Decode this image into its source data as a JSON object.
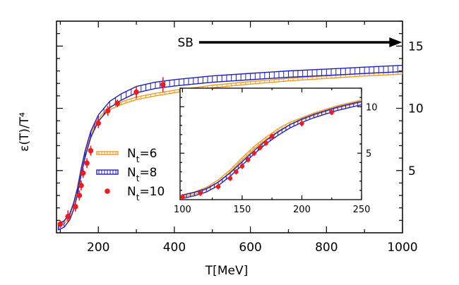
{
  "colors": {
    "nt6": "#f29a1f",
    "nt8": "#1f1fc8",
    "nt10": "#ee1c1c",
    "axis": "#000000"
  },
  "chart_data": [
    {
      "type": "line",
      "title": "",
      "xlabel": "T[MeV]",
      "ylabel": "ε(T)/T⁴",
      "xlim": [
        90,
        1000
      ],
      "ylim": [
        0,
        17
      ],
      "x_ticks": [
        200,
        400,
        600,
        800,
        1000
      ],
      "y_ticks_right": [
        5,
        10,
        15
      ],
      "y_scale_note": "y-axis tick labels printed on the right side",
      "grid": false,
      "legend_position": "center-left",
      "legend": [
        "N_t=6",
        "N_t=8",
        "N_t=10"
      ],
      "annotation": {
        "text": "SB",
        "arrow_from_x": 465,
        "arrow_to_x": 995,
        "y": 15.3
      },
      "series": [
        {
          "name": "N_t=6",
          "style": "band",
          "x": [
            95,
            110,
            125,
            135,
            145,
            155,
            165,
            180,
            200,
            230,
            260,
            300,
            350,
            400,
            500,
            600,
            700,
            800,
            900,
            1000
          ],
          "y": [
            0.6,
            0.8,
            1.4,
            2.3,
            3.5,
            5.1,
            6.4,
            7.9,
            9.1,
            10.0,
            10.4,
            10.8,
            11.1,
            11.35,
            11.75,
            12.05,
            12.3,
            12.5,
            12.7,
            12.85
          ]
        },
        {
          "name": "N_t=8",
          "style": "band",
          "x": [
            95,
            110,
            125,
            135,
            145,
            155,
            165,
            180,
            200,
            230,
            260,
            300,
            350,
            400,
            500,
            600,
            700,
            800,
            900,
            1000
          ],
          "y": [
            0.5,
            0.7,
            1.3,
            2.1,
            3.3,
            4.9,
            6.3,
            7.9,
            9.2,
            10.3,
            10.9,
            11.5,
            11.85,
            12.05,
            12.35,
            12.55,
            12.75,
            12.9,
            13.05,
            13.2
          ]
        },
        {
          "name": "N_t=10",
          "style": "points",
          "x": [
            100,
            120,
            140,
            150,
            155,
            160,
            170,
            180,
            200,
            225,
            250,
            300,
            370
          ],
          "y": [
            0.7,
            1.3,
            2.1,
            3.0,
            3.8,
            4.8,
            5.6,
            6.6,
            8.8,
            9.8,
            10.4,
            11.3,
            11.9
          ],
          "err": [
            0.3,
            0.5,
            0.4,
            0.4,
            0.4,
            0.4,
            0.4,
            0.4,
            0.4,
            0.4,
            0.3,
            0.5,
            0.6
          ]
        }
      ]
    },
    {
      "type": "line",
      "title": "",
      "xlabel": "",
      "ylabel": "",
      "xlim": [
        98,
        250
      ],
      "ylim": [
        0,
        12
      ],
      "x_ticks": [
        100,
        150,
        200,
        250
      ],
      "y_ticks_right": [
        5,
        10
      ],
      "grid": false,
      "series": [
        {
          "name": "N_t=6",
          "style": "band",
          "x": [
            100,
            110,
            120,
            130,
            140,
            150,
            160,
            170,
            180,
            190,
            200,
            210,
            220,
            230,
            240,
            250
          ],
          "y": [
            0.4,
            0.7,
            1.2,
            2.0,
            3.1,
            4.4,
            5.6,
            6.6,
            7.5,
            8.2,
            8.7,
            9.2,
            9.6,
            10.0,
            10.3,
            10.6
          ]
        },
        {
          "name": "N_t=8",
          "style": "band",
          "x": [
            100,
            110,
            120,
            130,
            140,
            150,
            160,
            170,
            180,
            190,
            200,
            210,
            220,
            230,
            240,
            250
          ],
          "y": [
            0.3,
            0.6,
            1.0,
            1.7,
            2.7,
            3.9,
            5.1,
            6.2,
            7.1,
            7.9,
            8.5,
            9.0,
            9.4,
            9.8,
            10.1,
            10.4
          ]
        },
        {
          "name": "N_t=10",
          "style": "points",
          "x": [
            100,
            115,
            130,
            140,
            145,
            150,
            155,
            160,
            165,
            170,
            175,
            200,
            225
          ],
          "y": [
            0.3,
            0.7,
            1.4,
            2.3,
            3.0,
            3.6,
            4.3,
            5.0,
            5.6,
            6.1,
            6.8,
            8.2,
            9.4
          ],
          "err": [
            0.3,
            0.3,
            0.3,
            0.3,
            0.3,
            0.3,
            0.3,
            0.3,
            0.3,
            0.3,
            0.3,
            0.3,
            0.3
          ]
        }
      ]
    }
  ]
}
